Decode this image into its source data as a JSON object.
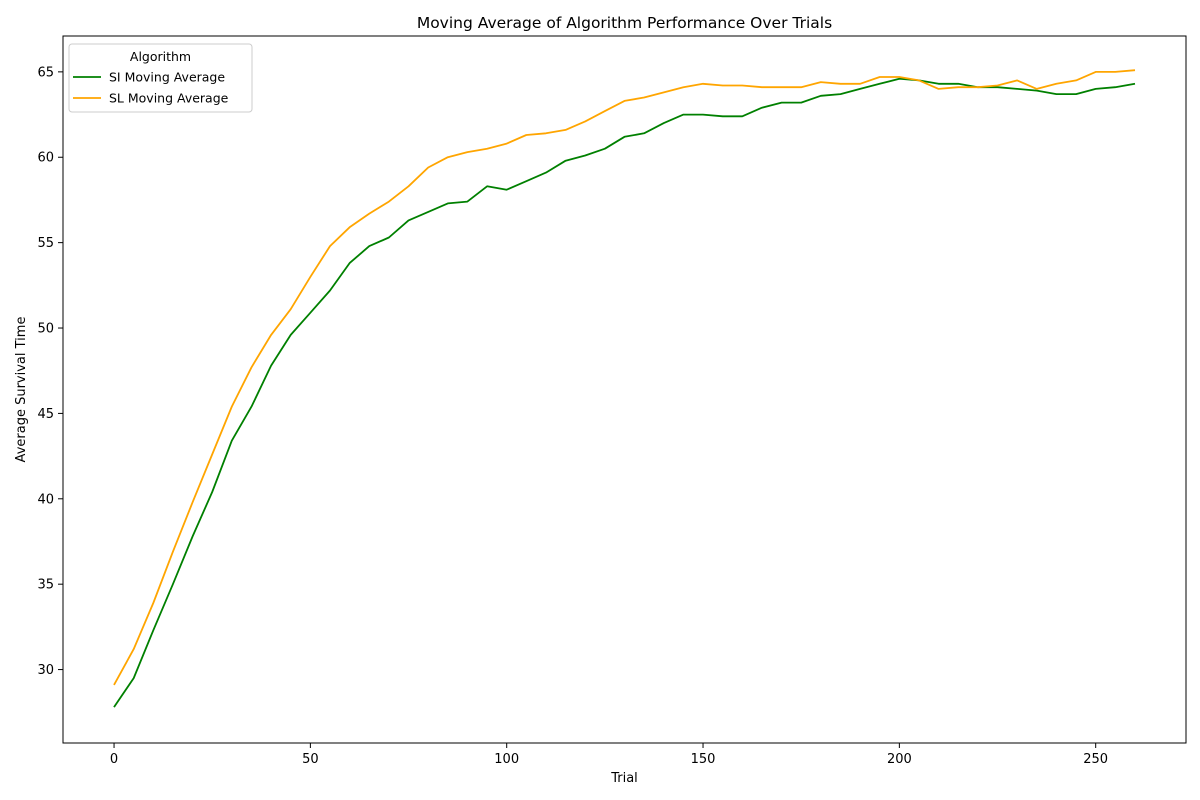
{
  "chart_data": {
    "type": "line",
    "title": "Moving Average of Algorithm Performance Over Trials",
    "xlabel": "Trial",
    "ylabel": "Average Survival Time",
    "xlim": [
      -13,
      273
    ],
    "ylim": [
      25.7,
      67.1
    ],
    "xticks": [
      0,
      50,
      100,
      150,
      200,
      250
    ],
    "yticks": [
      30,
      35,
      40,
      45,
      50,
      55,
      60,
      65
    ],
    "grid": false,
    "legend": {
      "title": "Algorithm",
      "placement": "top-left"
    },
    "series": [
      {
        "name": "SI Moving Average",
        "color": "#008000",
        "points": [
          [
            0,
            27.8
          ],
          [
            5,
            29.5
          ],
          [
            10,
            32.3
          ],
          [
            15,
            35.0
          ],
          [
            20,
            37.8
          ],
          [
            25,
            40.4
          ],
          [
            30,
            43.4
          ],
          [
            35,
            45.4
          ],
          [
            40,
            47.8
          ],
          [
            45,
            49.6
          ],
          [
            50,
            50.9
          ],
          [
            55,
            52.2
          ],
          [
            60,
            53.8
          ],
          [
            65,
            54.8
          ],
          [
            70,
            55.3
          ],
          [
            75,
            56.3
          ],
          [
            80,
            56.8
          ],
          [
            85,
            57.3
          ],
          [
            90,
            57.4
          ],
          [
            95,
            58.3
          ],
          [
            100,
            58.1
          ],
          [
            105,
            58.6
          ],
          [
            110,
            59.1
          ],
          [
            115,
            59.8
          ],
          [
            120,
            60.1
          ],
          [
            125,
            60.5
          ],
          [
            130,
            61.2
          ],
          [
            135,
            61.4
          ],
          [
            140,
            62.0
          ],
          [
            145,
            62.5
          ],
          [
            150,
            62.5
          ],
          [
            155,
            62.4
          ],
          [
            160,
            62.4
          ],
          [
            165,
            62.9
          ],
          [
            170,
            63.2
          ],
          [
            175,
            63.2
          ],
          [
            180,
            63.6
          ],
          [
            185,
            63.7
          ],
          [
            190,
            64.0
          ],
          [
            195,
            64.3
          ],
          [
            200,
            64.6
          ],
          [
            205,
            64.5
          ],
          [
            210,
            64.3
          ],
          [
            215,
            64.3
          ],
          [
            220,
            64.1
          ],
          [
            225,
            64.1
          ],
          [
            230,
            64.0
          ],
          [
            235,
            63.9
          ],
          [
            240,
            63.7
          ],
          [
            245,
            63.7
          ],
          [
            250,
            64.0
          ],
          [
            255,
            64.1
          ],
          [
            260,
            64.3
          ]
        ]
      },
      {
        "name": "SL Moving Average",
        "color": "#FFA500",
        "points": [
          [
            0,
            29.1
          ],
          [
            5,
            31.2
          ],
          [
            10,
            33.9
          ],
          [
            15,
            36.9
          ],
          [
            20,
            39.8
          ],
          [
            25,
            42.6
          ],
          [
            30,
            45.4
          ],
          [
            35,
            47.7
          ],
          [
            40,
            49.6
          ],
          [
            45,
            51.1
          ],
          [
            50,
            53.0
          ],
          [
            55,
            54.8
          ],
          [
            60,
            55.9
          ],
          [
            65,
            56.7
          ],
          [
            70,
            57.4
          ],
          [
            75,
            58.3
          ],
          [
            80,
            59.4
          ],
          [
            85,
            60.0
          ],
          [
            90,
            60.3
          ],
          [
            95,
            60.5
          ],
          [
            100,
            60.8
          ],
          [
            105,
            61.3
          ],
          [
            110,
            61.4
          ],
          [
            115,
            61.6
          ],
          [
            120,
            62.1
          ],
          [
            125,
            62.7
          ],
          [
            130,
            63.3
          ],
          [
            135,
            63.5
          ],
          [
            140,
            63.8
          ],
          [
            145,
            64.1
          ],
          [
            150,
            64.3
          ],
          [
            155,
            64.2
          ],
          [
            160,
            64.2
          ],
          [
            165,
            64.1
          ],
          [
            170,
            64.1
          ],
          [
            175,
            64.1
          ],
          [
            180,
            64.4
          ],
          [
            185,
            64.3
          ],
          [
            190,
            64.3
          ],
          [
            195,
            64.7
          ],
          [
            200,
            64.7
          ],
          [
            205,
            64.5
          ],
          [
            210,
            64.0
          ],
          [
            215,
            64.1
          ],
          [
            220,
            64.1
          ],
          [
            225,
            64.2
          ],
          [
            230,
            64.5
          ],
          [
            235,
            64.0
          ],
          [
            240,
            64.3
          ],
          [
            245,
            64.5
          ],
          [
            250,
            65.0
          ],
          [
            255,
            65.0
          ],
          [
            260,
            65.1
          ]
        ]
      }
    ]
  }
}
